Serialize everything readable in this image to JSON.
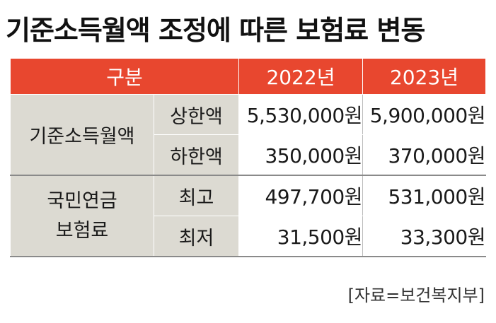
{
  "title": "기준소득월액 조정에 따른 보험료 변동",
  "table": {
    "headers": [
      "구분",
      "2022년",
      "2023년"
    ],
    "groups": [
      {
        "label": "기준소득월액",
        "label_lines": [
          "기준소득월액"
        ],
        "rows": [
          {
            "sub": "상한액",
            "y2022": "5,530,000원",
            "y2023": "5,900,000원"
          },
          {
            "sub": "하한액",
            "y2022": "350,000원",
            "y2023": "370,000원"
          }
        ]
      },
      {
        "label": "국민연금 보험료",
        "label_lines": [
          "국민연금",
          "보험료"
        ],
        "rows": [
          {
            "sub": "최고",
            "y2022": "497,700원",
            "y2023": "531,000원"
          },
          {
            "sub": "최저",
            "y2022": "31,500원",
            "y2023": "33,300원"
          }
        ]
      }
    ]
  },
  "source": "[자료=보건복지부]"
}
